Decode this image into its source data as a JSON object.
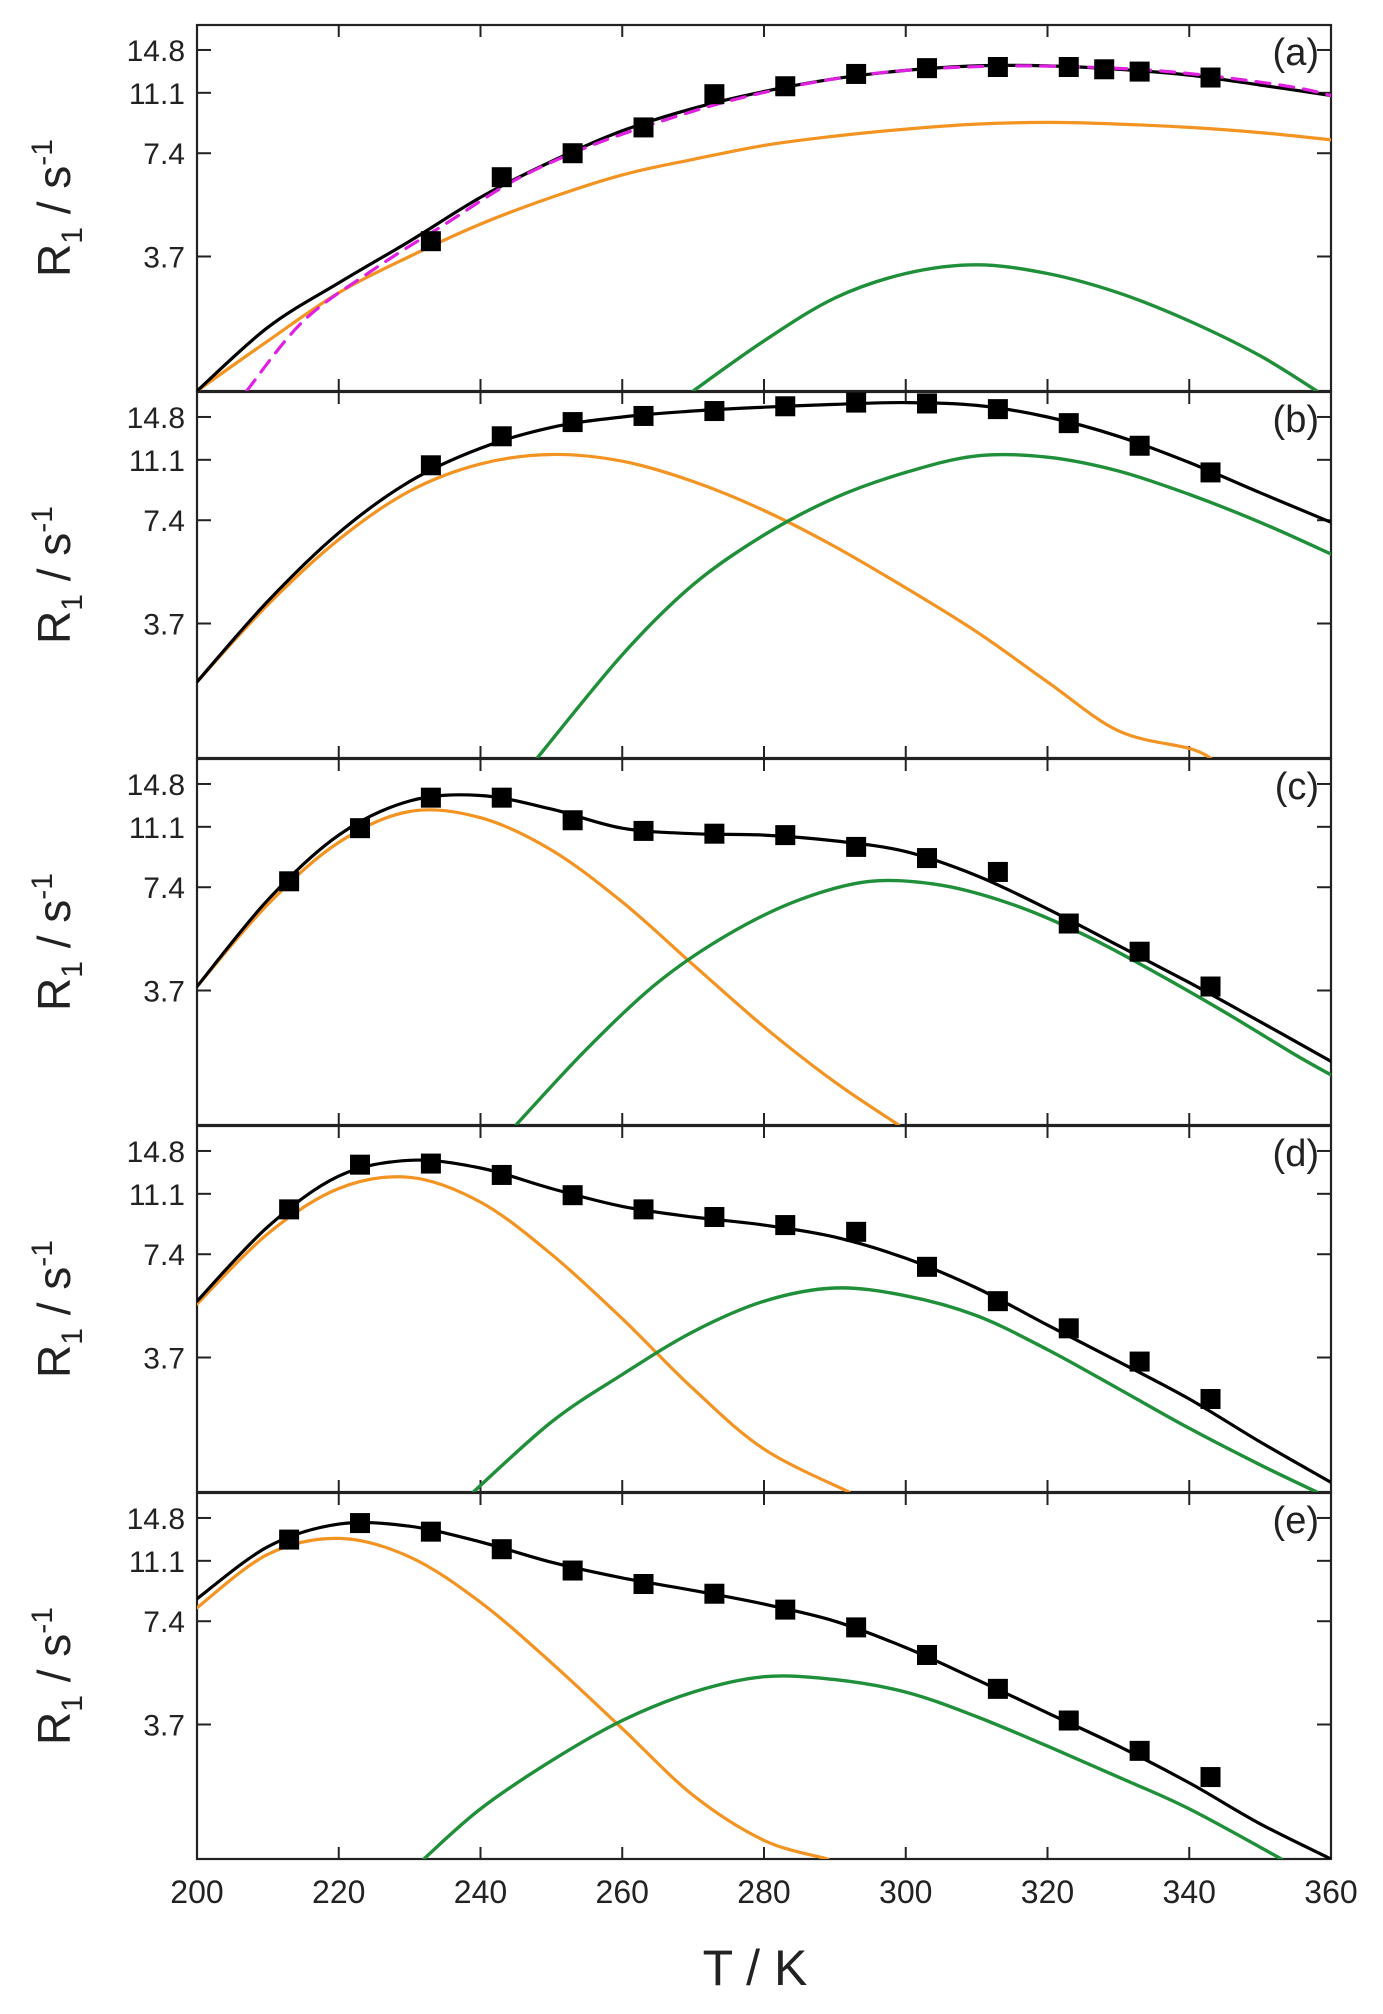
{
  "colors": {
    "total": "#000000",
    "comp1": "#f39322",
    "comp2": "#1f8f3a",
    "fit_a": "#e020e0",
    "points": "#000000"
  },
  "chart_data": {
    "type": "line",
    "stacked_panels": true,
    "xlabel": "T / K",
    "ylabel_main": "R",
    "ylabel_sub": "1",
    "ylabel_unit": " / s",
    "ylabel_exp": "-1",
    "xlim": [
      200,
      360
    ],
    "ylim": [
      1.5,
      17.5
    ],
    "y_scale": "log",
    "x_ticks": [
      "200",
      "220",
      "240",
      "260",
      "280",
      "300",
      "320",
      "340",
      "360"
    ],
    "y_ticks": [
      "14.8",
      "11.1",
      "7.4",
      "3.7"
    ],
    "panels": [
      {
        "label": "(a)",
        "points": {
          "T": [
            233,
            243,
            253,
            263,
            273,
            283,
            293,
            303,
            313,
            323,
            328,
            333,
            343
          ],
          "R1": [
            4.1,
            6.3,
            7.4,
            8.8,
            11.0,
            11.6,
            12.6,
            13.1,
            13.2,
            13.2,
            13.0,
            12.8,
            12.3
          ]
        },
        "series": [
          {
            "name": "total",
            "T": [
              200,
              210,
              220,
              230,
              240,
              250,
              260,
              270,
              280,
              290,
              300,
              310,
              320,
              330,
              340,
              350,
              360
            ],
            "R1": [
              1.5,
              2.3,
              3.1,
              4.1,
              5.5,
              7.0,
              8.6,
              10.0,
              11.2,
              12.2,
              12.9,
              13.3,
              13.3,
              13.0,
              12.5,
              11.7,
              10.9
            ]
          },
          {
            "name": "comp1",
            "T": [
              200,
              210,
              220,
              230,
              240,
              250,
              260,
              270,
              280,
              290,
              300,
              310,
              320,
              330,
              340,
              350,
              360
            ],
            "R1": [
              1.5,
              2.1,
              2.9,
              3.7,
              4.6,
              5.5,
              6.4,
              7.1,
              7.8,
              8.3,
              8.7,
              9.0,
              9.1,
              9.0,
              8.8,
              8.5,
              8.1
            ]
          },
          {
            "name": "comp2",
            "T": [
              270,
              280,
              290,
              300,
              310,
              320,
              330,
              340,
              350,
              358
            ],
            "R1": [
              1.5,
              2.1,
              2.8,
              3.3,
              3.5,
              3.3,
              2.9,
              2.4,
              1.9,
              1.5
            ]
          },
          {
            "name": "fit_a",
            "T": [
              207,
              215,
              225,
              235,
              245,
              255,
              265,
              275,
              285,
              295,
              305,
              315,
              325,
              335,
              345,
              355,
              360
            ],
            "R1": [
              1.5,
              2.4,
              3.4,
              4.6,
              6.2,
              7.7,
              9.1,
              10.5,
              11.7,
              12.6,
              13.1,
              13.3,
              13.2,
              12.9,
              12.3,
              11.5,
              10.9
            ]
          }
        ]
      },
      {
        "label": "(b)",
        "points": {
          "T": [
            233,
            243,
            253,
            263,
            273,
            283,
            293,
            303,
            313,
            323,
            333,
            343
          ],
          "R1": [
            10.7,
            13.0,
            14.3,
            14.9,
            15.4,
            15.9,
            16.3,
            16.2,
            15.6,
            14.2,
            12.2,
            10.2
          ]
        },
        "series": [
          {
            "name": "total",
            "T": [
              200,
              210,
              220,
              230,
              240,
              250,
              260,
              270,
              280,
              290,
              300,
              310,
              320,
              330,
              340,
              350,
              360
            ],
            "R1": [
              2.5,
              4.3,
              6.8,
              9.6,
              12.0,
              13.8,
              14.8,
              15.4,
              15.8,
              16.1,
              16.3,
              16.0,
              14.8,
              13.0,
              10.9,
              8.9,
              7.3
            ]
          },
          {
            "name": "comp1",
            "T": [
              200,
              210,
              220,
              230,
              240,
              250,
              260,
              270,
              280,
              290,
              300,
              310,
              320,
              330,
              340,
              343
            ],
            "R1": [
              2.5,
              4.2,
              6.5,
              9.0,
              10.8,
              11.5,
              11.0,
              9.6,
              7.9,
              6.2,
              4.7,
              3.5,
              2.5,
              1.8,
              1.6,
              1.5
            ]
          },
          {
            "name": "comp2",
            "T": [
              248,
              260,
              270,
              280,
              290,
              300,
              310,
              320,
              330,
              340,
              350,
              360
            ],
            "R1": [
              1.5,
              3.0,
              4.8,
              6.7,
              8.6,
              10.2,
              11.4,
              11.3,
              10.3,
              8.8,
              7.3,
              5.9
            ]
          }
        ]
      },
      {
        "label": "(c)",
        "points": {
          "T": [
            213,
            223,
            233,
            243,
            253,
            263,
            273,
            283,
            293,
            303,
            313,
            323,
            333,
            343
          ],
          "R1": [
            7.7,
            11.0,
            13.5,
            13.5,
            11.6,
            10.8,
            10.6,
            10.5,
            9.7,
            9.0,
            8.2,
            5.8,
            4.8,
            3.8
          ]
        },
        "series": [
          {
            "name": "total",
            "T": [
              200,
              210,
              220,
              230,
              240,
              250,
              260,
              270,
              280,
              290,
              300,
              310,
              320,
              330,
              340,
              350,
              360
            ],
            "R1": [
              3.8,
              6.8,
              10.5,
              13.2,
              13.7,
              12.5,
              11.0,
              10.6,
              10.5,
              10.1,
              9.4,
              8.0,
              6.4,
              5.0,
              3.9,
              3.0,
              2.3
            ]
          },
          {
            "name": "comp1",
            "T": [
              200,
              210,
              220,
              230,
              240,
              250,
              260,
              270,
              280,
              290,
              299
            ],
            "R1": [
              3.8,
              6.6,
              10.0,
              12.3,
              11.8,
              9.5,
              6.7,
              4.4,
              2.9,
              2.0,
              1.5
            ]
          },
          {
            "name": "comp2",
            "T": [
              245,
              255,
              265,
              275,
              285,
              295,
              305,
              315,
              325,
              335,
              345,
              355,
              360
            ],
            "R1": [
              1.5,
              2.5,
              3.9,
              5.4,
              6.8,
              7.7,
              7.5,
              6.6,
              5.4,
              4.2,
              3.2,
              2.4,
              2.1
            ]
          }
        ]
      },
      {
        "label": "(d)",
        "points": {
          "T": [
            213,
            223,
            233,
            243,
            253,
            263,
            273,
            283,
            293,
            303,
            313,
            323,
            333,
            343
          ],
          "R1": [
            10.0,
            13.5,
            13.6,
            12.6,
            11.0,
            10.0,
            9.5,
            9.0,
            8.6,
            6.8,
            5.4,
            4.5,
            3.6,
            2.8
          ]
        },
        "series": [
          {
            "name": "total",
            "T": [
              200,
              210,
              220,
              230,
              240,
              250,
              260,
              270,
              280,
              290,
              300,
              310,
              320,
              330,
              340,
              350,
              360
            ],
            "R1": [
              5.4,
              8.9,
              12.5,
              13.9,
              13.2,
              11.5,
              10.2,
              9.5,
              9.0,
              8.3,
              7.2,
              5.9,
              4.6,
              3.6,
              2.8,
              2.1,
              1.6
            ]
          },
          {
            "name": "comp1",
            "T": [
              200,
              210,
              220,
              230,
              240,
              250,
              260,
              270,
              280,
              292
            ],
            "R1": [
              5.3,
              8.5,
              11.5,
              12.4,
              10.5,
              7.4,
              4.8,
              3.0,
              2.0,
              1.5
            ]
          },
          {
            "name": "comp2",
            "T": [
              239,
              250,
              260,
              270,
              280,
              290,
              300,
              310,
              320,
              330,
              340,
              350,
              358
            ],
            "R1": [
              1.5,
              2.4,
              3.3,
              4.4,
              5.4,
              5.9,
              5.6,
              4.9,
              3.9,
              3.0,
              2.3,
              1.8,
              1.5
            ]
          }
        ]
      },
      {
        "label": "(e)",
        "points": {
          "T": [
            213,
            223,
            233,
            243,
            253,
            263,
            273,
            283,
            293,
            303,
            313,
            323,
            333,
            343
          ],
          "R1": [
            12.8,
            14.3,
            13.5,
            12.0,
            10.4,
            9.5,
            8.9,
            8.0,
            7.1,
            5.9,
            4.7,
            3.8,
            3.1,
            2.6
          ]
        },
        "series": [
          {
            "name": "total",
            "T": [
              200,
              210,
              220,
              230,
              240,
              250,
              260,
              270,
              280,
              290,
              300,
              310,
              320,
              330,
              340,
              350,
              360
            ],
            "R1": [
              8.6,
              12.2,
              14.2,
              14.0,
              12.6,
              11.0,
              9.9,
              9.1,
              8.3,
              7.4,
              6.2,
              5.0,
              4.0,
              3.2,
              2.5,
              1.9,
              1.5
            ]
          },
          {
            "name": "comp1",
            "T": [
              200,
              210,
              220,
              230,
              240,
              250,
              260,
              270,
              280,
              289
            ],
            "R1": [
              8.1,
              11.6,
              12.9,
              11.4,
              8.4,
              5.6,
              3.6,
              2.3,
              1.7,
              1.5
            ]
          },
          {
            "name": "comp2",
            "T": [
              232,
              240,
              250,
              260,
              270,
              280,
              290,
              300,
              310,
              320,
              330,
              340,
              353
            ],
            "R1": [
              1.5,
              2.1,
              2.9,
              3.8,
              4.6,
              5.1,
              5.0,
              4.6,
              3.9,
              3.2,
              2.6,
              2.1,
              1.5
            ]
          }
        ]
      }
    ]
  }
}
